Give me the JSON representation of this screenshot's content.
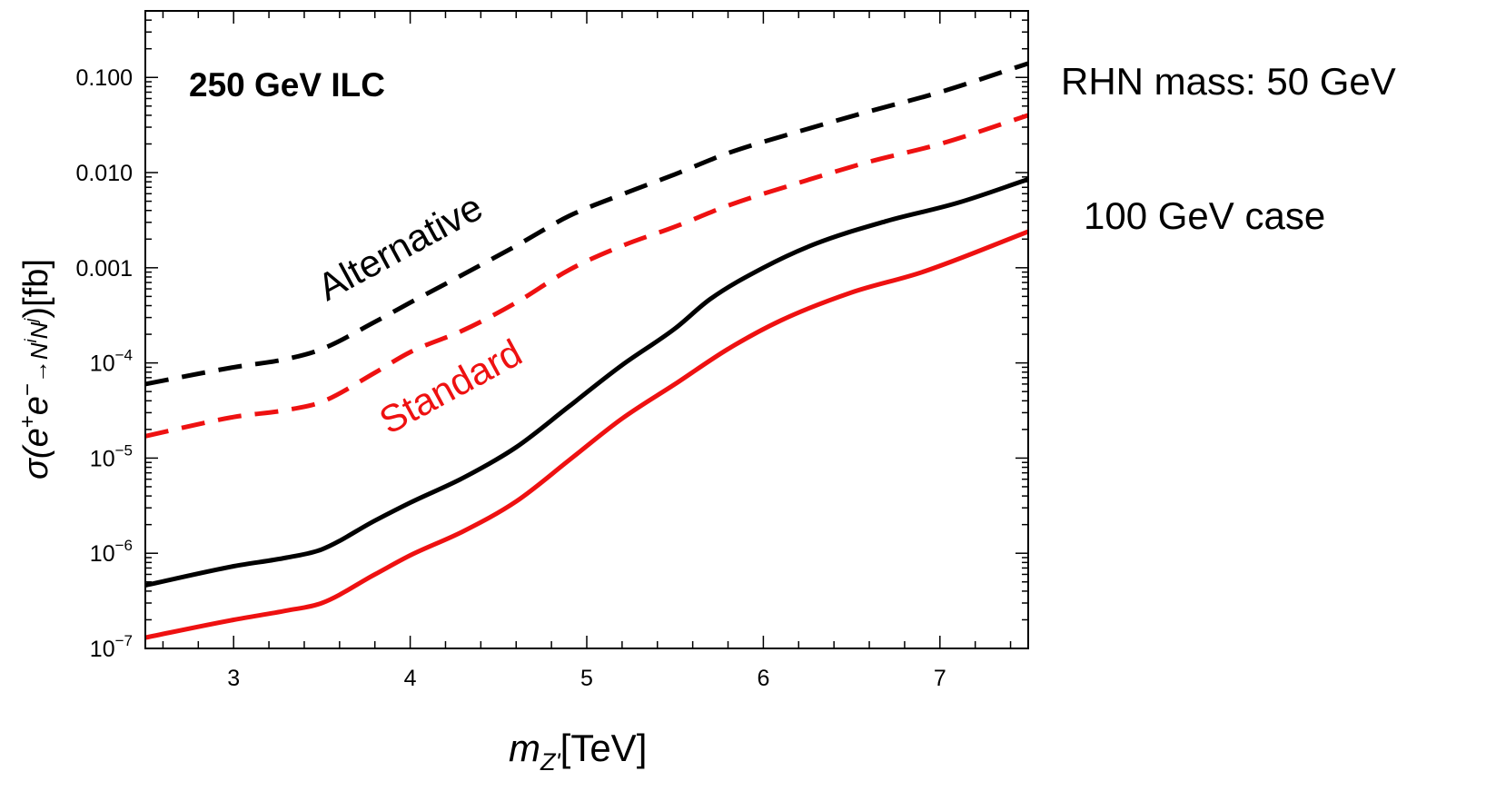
{
  "chart_data": {
    "type": "line",
    "xlabel": {
      "main": "m",
      "sub": "Z'",
      "unit": "[TeV]"
    },
    "ylabel": {
      "sigma": "σ(e",
      "sup1": "+",
      "mid": "e",
      "sup2": "−",
      "arrow": "→N",
      "supi": "i",
      "n2": "N",
      "supj": "j",
      "tail": ")[fb]"
    },
    "xlim": [
      2.5,
      7.5
    ],
    "ylim": [
      1e-07,
      0.5
    ],
    "yscale": "log",
    "grid": false,
    "x_ticks": [
      "3",
      "4",
      "5",
      "6",
      "7"
    ],
    "y_ticks": [
      {
        "value": 0.1,
        "base": "0.100",
        "exp": ""
      },
      {
        "value": 0.01,
        "base": "0.010",
        "exp": ""
      },
      {
        "value": 0.001,
        "base": "0.001",
        "exp": ""
      },
      {
        "value": 0.0001,
        "base": "10",
        "exp": "−4"
      },
      {
        "value": 1e-05,
        "base": "10",
        "exp": "−5"
      },
      {
        "value": 1e-06,
        "base": "10",
        "exp": "−6"
      },
      {
        "value": 1e-07,
        "base": "10",
        "exp": "−7"
      }
    ],
    "series": [
      {
        "name": "Alternative",
        "color": "#000000",
        "style": "dashed",
        "mass": "50 GeV",
        "x": [
          2.5,
          3.0,
          3.3,
          3.5,
          3.8,
          4.0,
          4.3,
          4.6,
          4.9,
          5.2,
          5.5,
          5.8,
          6.2,
          6.6,
          7.0,
          7.5
        ],
        "y": [
          6e-05,
          9e-05,
          0.00011,
          0.00014,
          0.00027,
          0.00043,
          0.00085,
          0.0017,
          0.0035,
          0.0059,
          0.0096,
          0.016,
          0.027,
          0.044,
          0.07,
          0.14
        ]
      },
      {
        "name": "Standard",
        "color": "#ee1111",
        "style": "dashed",
        "mass": "50 GeV",
        "x": [
          2.5,
          3.0,
          3.3,
          3.5,
          3.8,
          4.0,
          4.3,
          4.6,
          4.9,
          5.2,
          5.5,
          5.8,
          6.2,
          6.6,
          7.0,
          7.5
        ],
        "y": [
          1.7e-05,
          2.7e-05,
          3.2e-05,
          3.9e-05,
          7.9e-05,
          0.00013,
          0.00022,
          0.00043,
          0.00095,
          0.0017,
          0.0027,
          0.0045,
          0.0078,
          0.013,
          0.02,
          0.04
        ]
      },
      {
        "name": "Alternative",
        "color": "#000000",
        "style": "solid",
        "mass": "100 GeV",
        "x": [
          2.5,
          3.0,
          3.3,
          3.5,
          3.8,
          4.0,
          4.3,
          4.6,
          4.9,
          5.2,
          5.5,
          5.7,
          6.0,
          6.3,
          6.7,
          7.1,
          7.5
        ],
        "y": [
          4.6e-07,
          7.3e-07,
          9e-07,
          1.1e-06,
          2.2e-06,
          3.4e-06,
          6.2e-06,
          1.3e-05,
          3.5e-05,
          9.5e-05,
          0.00023,
          0.00047,
          0.001,
          0.0018,
          0.0031,
          0.0048,
          0.0085
        ]
      },
      {
        "name": "Standard",
        "color": "#ee1111",
        "style": "solid",
        "mass": "100 GeV",
        "x": [
          2.5,
          3.0,
          3.3,
          3.5,
          3.8,
          4.0,
          4.3,
          4.6,
          4.9,
          5.2,
          5.5,
          5.8,
          6.1,
          6.5,
          6.9,
          7.5
        ],
        "y": [
          1.3e-07,
          2e-07,
          2.5e-07,
          3e-07,
          6e-07,
          9.5e-07,
          1.7e-06,
          3.5e-06,
          9.5e-06,
          2.6e-05,
          6e-05,
          0.00014,
          0.00028,
          0.00055,
          0.0009,
          0.0024
        ]
      }
    ],
    "annotations": {
      "title": "250 GeV ILC",
      "alternative": "Alternative",
      "standard": "Standard",
      "rhn_mass": "RHN mass: 50 GeV",
      "case_100": "100 GeV case"
    }
  },
  "colors": {
    "black": "#000000",
    "red": "#ee1111"
  }
}
